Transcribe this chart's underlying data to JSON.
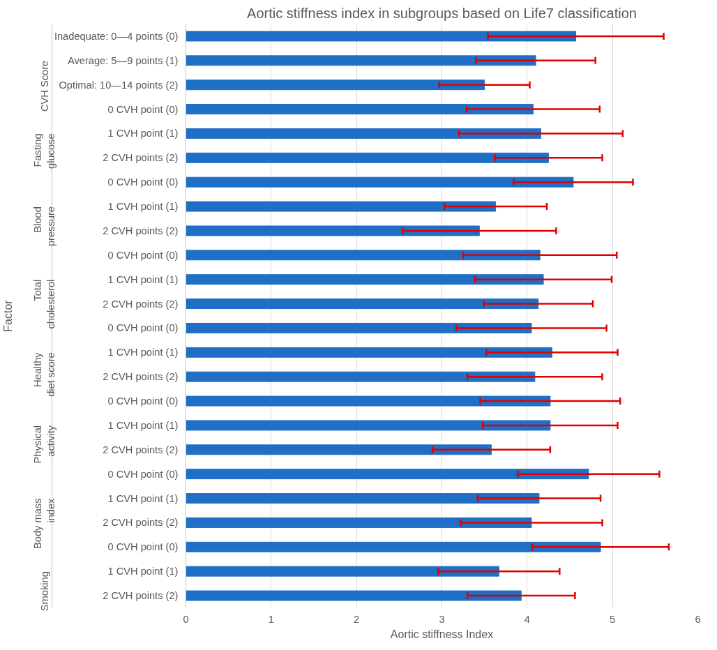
{
  "chart_data": {
    "type": "bar",
    "orientation": "horizontal",
    "title": "Aortic stiffness index in subgroups based on Life7 classification",
    "xlabel": "Aortic stiffness Index",
    "ylabel": "Factor",
    "categories": [
      "Inadequate: 0—4 points (0)",
      "Average: 5—9 points (1)",
      "Optimal: 10—14 points (2)",
      "0 CVH point (0)",
      "1 CVH point (1)",
      "2 CVH points (2)",
      "0 CVH point (0)",
      "1 CVH point (1)",
      "2 CVH points (2)",
      "0 CVH point (0)",
      "1 CVH point (1)",
      "2 CVH points (2)",
      "0 CVH point (0)",
      "1 CVH point (1)",
      "2 CVH points (2)",
      "0 CVH point (0)",
      "1 CVH point (1)",
      "2 CVH points (2)",
      "0 CVH point (0)",
      "1 CVH point (1)",
      "2 CVH points (2)",
      "0 CVH point (0)",
      "1 CVH point (1)",
      "2 CVH points (2)"
    ],
    "values": [
      4.57,
      4.1,
      3.5,
      4.07,
      4.16,
      4.25,
      4.54,
      3.63,
      3.44,
      4.15,
      4.19,
      4.13,
      4.05,
      4.29,
      4.09,
      4.27,
      4.27,
      3.58,
      4.72,
      4.14,
      4.05,
      4.86,
      3.67,
      3.93
    ],
    "errors": [
      1.03,
      0.7,
      0.53,
      0.78,
      0.96,
      0.63,
      0.7,
      0.6,
      0.9,
      0.9,
      0.8,
      0.64,
      0.88,
      0.77,
      0.79,
      0.82,
      0.79,
      0.69,
      0.83,
      0.72,
      0.83,
      0.8,
      0.71,
      0.63
    ],
    "color": "#1f6fc6",
    "annotations": [
      "CVH Score",
      "Fasting\nglucose",
      "Blood\npressure",
      "Total\ncholesterol",
      "Healthy\ndiet score",
      "Physical\nactivity",
      "Body mass\nindex",
      "Smoking"
    ],
    "xlim": [
      0,
      6
    ],
    "xticks": [
      0,
      1,
      2,
      3,
      4,
      5,
      6
    ],
    "grid": "x"
  }
}
